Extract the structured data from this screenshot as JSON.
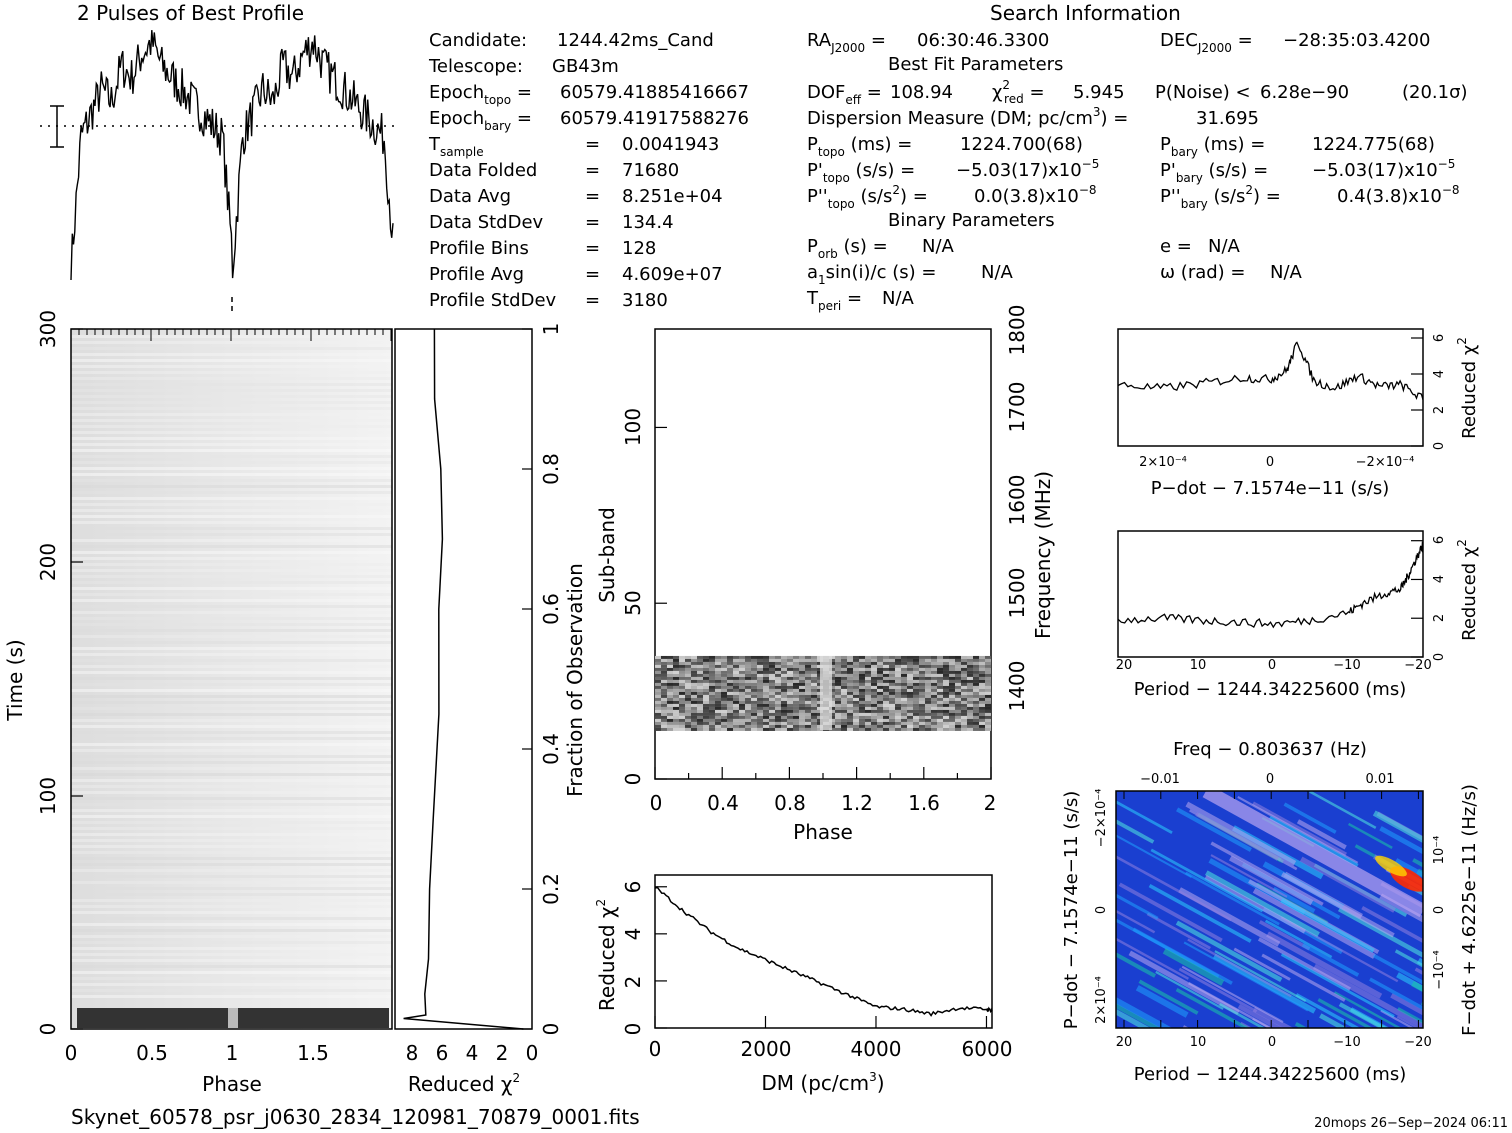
{
  "header": {
    "profile_title": "2 Pulses of Best Profile",
    "search_title": "Search Information",
    "best_fit_title": "Best Fit Parameters",
    "binary_title": "Binary Parameters"
  },
  "info": {
    "candidate_label": "Candidate:",
    "candidate": "1244.42ms_Cand",
    "telescope_label": "Telescope:",
    "telescope": "GB43m",
    "epoch_topo": "60579.41885416667",
    "epoch_bary": "60579.41917588276",
    "t_sample": "0.0041943",
    "data_folded": "71680",
    "data_avg": "8.251e+04",
    "data_stddev": "134.4",
    "profile_bins": "128",
    "profile_avg": "4.609e+07",
    "profile_stddev": "3180"
  },
  "search": {
    "ra": "06:30:46.3300",
    "dec": "−28:35:03.4200",
    "dof_eff": "108.94",
    "chi2_red": "5.945",
    "p_noise": "6.28e−90",
    "sigma": "(20.1σ)",
    "dm": "31.695",
    "p_topo": "1224.700(68)",
    "p_bary": "1224.775(68)",
    "pd_topo": "−5.03(17)",
    "pd_bary": "−5.03(17)",
    "pd_exp": "−5",
    "pdd_topo": "0.0(3.8)",
    "pdd_bary": "0.4(3.8)",
    "pdd_exp": "−8",
    "p_orb": "N/A",
    "ecc": "N/A",
    "a1sini": "N/A",
    "omega": "N/A",
    "t_peri": "N/A"
  },
  "footer": {
    "filename": "Skynet_60578_psr_j0630_2834_120981_70879_0001.fits",
    "stamp": "20mops 26−Sep−2024 06:11"
  },
  "chart_data": [
    {
      "type": "line",
      "name": "profile",
      "title": "2 Pulses of Best Profile",
      "x": "phase 0-2",
      "points": 256,
      "description_values": [
        0.05,
        0.6,
        0.7,
        0.8,
        0.75,
        0.9,
        0.85,
        0.95,
        1.0,
        0.9,
        0.85,
        0.8,
        0.75,
        0.7,
        0.65,
        0.6,
        0.1
      ],
      "dotted_level": 0.55
    },
    {
      "type": "heatmap",
      "name": "time-phase",
      "xlabel": "Phase",
      "ylabel": "Time (s)",
      "xticks": [
        "0",
        "0.5",
        "1",
        "1.5"
      ],
      "yticks": [
        "0",
        "100",
        "200",
        "300"
      ],
      "xlim": [
        0,
        2
      ],
      "ylim": [
        0,
        300
      ]
    },
    {
      "type": "line",
      "name": "chi2-vs-time",
      "xlabel": "Reduced χ²",
      "ylabel": "Fraction of Observation",
      "xticks": [
        "8",
        "6",
        "4",
        "2",
        "0"
      ],
      "yticks": [
        "0",
        "0.2",
        "0.4",
        "0.6",
        "0.8",
        "1"
      ],
      "xlim": [
        8,
        0
      ],
      "ylim": [
        0,
        1
      ],
      "points": [
        [
          0.5,
          0.0
        ],
        [
          7.5,
          0.015
        ],
        [
          6.2,
          0.02
        ],
        [
          6.2,
          0.05
        ],
        [
          6.0,
          0.1
        ],
        [
          5.9,
          0.2
        ],
        [
          5.7,
          0.3
        ],
        [
          5.5,
          0.45
        ],
        [
          5.4,
          0.6
        ],
        [
          5.3,
          0.7
        ],
        [
          5.4,
          0.8
        ],
        [
          5.6,
          0.9
        ],
        [
          5.7,
          1.0
        ]
      ]
    },
    {
      "type": "heatmap",
      "name": "subband-phase",
      "xlabel": "Phase",
      "ylabel": "Sub-band",
      "y2label": "Frequency (MHz)",
      "xticks": [
        "0",
        "0.4",
        "0.8",
        "1.2",
        "1.6",
        "2"
      ],
      "yticks": [
        "0",
        "50",
        "100"
      ],
      "y2ticks": [
        "1400",
        "1500",
        "1600",
        "1700",
        "1800"
      ],
      "xlim": [
        0,
        2
      ],
      "ylim": [
        0,
        128
      ],
      "y2lim": [
        1325,
        1805
      ],
      "band_range": [
        14,
        35
      ]
    },
    {
      "type": "line",
      "name": "chi2-vs-dm",
      "xlabel": "DM (pc/cm³)",
      "ylabel": "Reduced χ²",
      "xticks": [
        "0",
        "2000",
        "4000",
        "6000"
      ],
      "yticks": [
        "0",
        "2",
        "4",
        "6"
      ],
      "xlim": [
        0,
        6100
      ],
      "ylim": [
        0,
        6.5
      ],
      "points": [
        [
          0,
          6.0
        ],
        [
          500,
          5.0
        ],
        [
          1000,
          4.1
        ],
        [
          1500,
          3.4
        ],
        [
          2000,
          2.9
        ],
        [
          2500,
          2.4
        ],
        [
          3000,
          1.9
        ],
        [
          3500,
          1.4
        ],
        [
          4000,
          0.9
        ],
        [
          4500,
          0.8
        ],
        [
          5000,
          0.6
        ],
        [
          5500,
          0.85
        ],
        [
          6000,
          0.8
        ],
        [
          6100,
          0.75
        ]
      ]
    },
    {
      "type": "line",
      "name": "chi2-vs-pdot",
      "xlabel": "P−dot − 7.1574e−11 (s/s)",
      "ylabel": "Reduced χ²",
      "xticks": [
        "2×10⁻⁴",
        "0",
        "−2×10⁻⁴"
      ],
      "yticks": [
        "0",
        "2",
        "4",
        "6"
      ],
      "xlim": [
        0.00028,
        -0.00028
      ],
      "ylim": [
        0,
        6.5
      ],
      "points": [
        [
          0.00028,
          3.4
        ],
        [
          0.0002,
          3.2
        ],
        [
          0.00012,
          3.5
        ],
        [
          5e-05,
          3.8
        ],
        [
          0.0,
          3.7
        ],
        [
          -3e-05,
          4.2
        ],
        [
          -5e-05,
          5.8
        ],
        [
          -8e-05,
          3.6
        ],
        [
          -0.00012,
          3.2
        ],
        [
          -0.00016,
          3.9
        ],
        [
          -0.0002,
          3.3
        ],
        [
          -0.00024,
          3.4
        ],
        [
          -0.00028,
          2.6
        ]
      ]
    },
    {
      "type": "line",
      "name": "chi2-vs-period",
      "xlabel": "Period − 1244.34225600 (ms)",
      "ylabel": "Reduced χ²",
      "xticks": [
        "20",
        "10",
        "0",
        "−10",
        "−20"
      ],
      "yticks": [
        "0",
        "2",
        "4",
        "6"
      ],
      "xlim": [
        21,
        -20
      ],
      "ylim": [
        0,
        6.5
      ],
      "points": [
        [
          21,
          1.9
        ],
        [
          15,
          2.0
        ],
        [
          10,
          1.9
        ],
        [
          5,
          1.8
        ],
        [
          0,
          1.7
        ],
        [
          -5,
          1.9
        ],
        [
          -10,
          2.3
        ],
        [
          -12,
          2.8
        ],
        [
          -15,
          3.3
        ],
        [
          -17,
          3.5
        ],
        [
          -18,
          4.2
        ],
        [
          -19,
          5.0
        ],
        [
          -20,
          5.8
        ]
      ]
    },
    {
      "type": "heatmap",
      "name": "period-pdot-plane",
      "title": "Freq − 0.803637 (Hz)",
      "xlabel": "Period − 1244.34225600 (ms)",
      "ylabel": "P−dot − 7.1574e−11 (s/s)",
      "y2label": "F−dot + 4.6225e−11 (Hz/s)",
      "xticks": [
        "20",
        "10",
        "0",
        "−10",
        "−20"
      ],
      "topticks": [
        "−0.01",
        "0",
        "0.01"
      ],
      "yticks": [
        "2×10⁻⁴",
        "0",
        "−2×10⁻⁴"
      ],
      "y2ticks": [
        "−10⁻⁴",
        "0",
        "10⁻⁴"
      ]
    }
  ]
}
